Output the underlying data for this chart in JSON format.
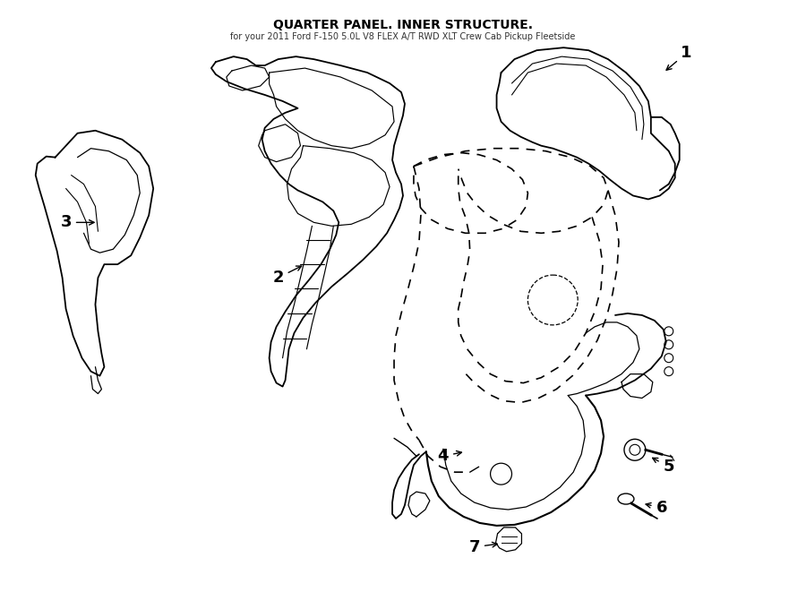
{
  "bg_color": "#ffffff",
  "line_color": "#000000",
  "fig_width": 9.0,
  "fig_height": 6.61,
  "dpi": 100,
  "title": "QUARTER PANEL. INNER STRUCTURE.",
  "subtitle": "for your 2011 Ford F-150 5.0L V8 FLEX A/T RWD XLT Crew Cab Pickup Fleetside"
}
